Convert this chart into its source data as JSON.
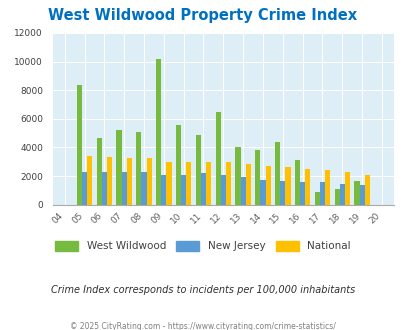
{
  "title": "West Wildwood Property Crime Index",
  "years": [
    "04",
    "05",
    "06",
    "07",
    "08",
    "09",
    "10",
    "11",
    "12",
    "13",
    "14",
    "15",
    "16",
    "17",
    "18",
    "19",
    "20"
  ],
  "west_wildwood": [
    0,
    8350,
    4650,
    5200,
    5050,
    10150,
    5550,
    4850,
    6500,
    4000,
    3800,
    4350,
    3150,
    900,
    1100,
    1650,
    0
  ],
  "new_jersey": [
    0,
    2300,
    2300,
    2250,
    2300,
    2050,
    2100,
    2200,
    2050,
    1950,
    1750,
    1650,
    1600,
    1600,
    1450,
    1350,
    0
  ],
  "national": [
    0,
    3400,
    3300,
    3250,
    3250,
    3000,
    2950,
    2950,
    2950,
    2850,
    2700,
    2600,
    2500,
    2400,
    2300,
    2100,
    0
  ],
  "ww_color": "#76bb3f",
  "nj_color": "#5b9bd5",
  "nat_color": "#ffc000",
  "plot_bg": "#ddeef6",
  "ylim": [
    0,
    12000
  ],
  "yticks": [
    0,
    2000,
    4000,
    6000,
    8000,
    10000,
    12000
  ],
  "subtitle": "Crime Index corresponds to incidents per 100,000 inhabitants",
  "footer": "© 2025 CityRating.com - https://www.cityrating.com/crime-statistics/",
  "title_color": "#0070c0",
  "subtitle_color": "#303030",
  "footer_color": "#808080",
  "legend_labels": [
    "West Wildwood",
    "New Jersey",
    "National"
  ]
}
